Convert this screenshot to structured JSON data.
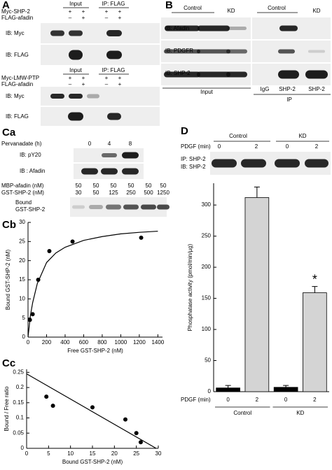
{
  "panels": {
    "A": {
      "label": "A",
      "top": {
        "groups": [
          "Input",
          "IP: FLAG"
        ],
        "rows": [
          {
            "name": "Myc-SHP-2",
            "marks": [
              "+",
              "+",
              "+",
              "+"
            ]
          },
          {
            "name": "FLAG-afadin",
            "marks": [
              "–",
              "+",
              "–",
              "+"
            ]
          }
        ],
        "blots": [
          "IB: Myc",
          "IB: FLAG"
        ]
      },
      "bottom": {
        "groups": [
          "Input",
          "IP: FLAG"
        ],
        "rows": [
          {
            "name": "Myc-LMW-PTP",
            "marks": [
              "+",
              "+",
              "+",
              "+"
            ]
          },
          {
            "name": "FLAG-afadin",
            "marks": [
              "–",
              "+",
              "–",
              "+"
            ]
          }
        ],
        "blots": [
          "IB: Myc",
          "IB: FLAG"
        ]
      }
    },
    "B": {
      "label": "B",
      "groups": [
        "Control",
        "KD",
        "Control",
        "KD"
      ],
      "blots": [
        "IB: Afadin",
        "IB: PDGFR",
        "IB: SHP-2"
      ],
      "lanes": [
        "IgG",
        "SHP-2",
        "SHP-2"
      ],
      "sections": [
        "Input",
        "IP"
      ]
    },
    "Ca": {
      "label": "Ca",
      "time_label": "Pervanadate (h)",
      "times": [
        "0",
        "4",
        "8"
      ],
      "blots": [
        "IB: pY20",
        "IB : Afadin"
      ],
      "rows": [
        {
          "name": "MBP-afadin (nM)",
          "values": [
            "50",
            "50",
            "50",
            "50",
            "50",
            "50"
          ]
        },
        {
          "name": "GST-SHP-2 (nM)",
          "values": [
            "30",
            "50",
            "125",
            "250",
            "500",
            "1250"
          ]
        }
      ],
      "bound_label": [
        "Bound",
        "GST-SHP-2"
      ]
    },
    "D": {
      "groups": [
        "Control",
        "KD"
      ],
      "pdgf_label": "PDGF (min)",
      "times": [
        "0",
        "2",
        "0",
        "2"
      ],
      "blot": [
        "IP: SHP-2",
        "IB: SHP-2"
      ]
    }
  },
  "chart_data": [
    {
      "type": "scatter",
      "label": "Cb",
      "xlabel": "Free GST-SHP-2 (nM)",
      "ylabel": "Bound GST-SHP-2 (nM)",
      "xlim": [
        0,
        1450
      ],
      "xticks": [
        0,
        200,
        400,
        600,
        800,
        1000,
        1200,
        1400
      ],
      "ylim": [
        0,
        30
      ],
      "yticks": [
        0,
        5,
        10,
        15,
        20,
        25,
        30
      ],
      "series": [
        {
          "style": "points",
          "color": "#000000",
          "x": [
            20,
            50,
            110,
            230,
            480,
            1220
          ],
          "values": [
            4.5,
            6,
            15,
            22.5,
            25,
            26
          ]
        },
        {
          "style": "line",
          "color": "#000000",
          "x": [
            0,
            25,
            50,
            100,
            200,
            300,
            400,
            600,
            800,
            1000,
            1200,
            1400
          ],
          "values": [
            0,
            5.5,
            9,
            14,
            19.5,
            22,
            23.5,
            25.3,
            26.3,
            27,
            27.4,
            27.7
          ]
        }
      ]
    },
    {
      "type": "scatter",
      "label": "Cc",
      "xlabel": "Bound GST-SHP-2 (nM)",
      "ylabel": "Bound / Free ratio",
      "xlim": [
        0,
        30
      ],
      "xticks": [
        0,
        5,
        10,
        15,
        20,
        25,
        30
      ],
      "ylim": [
        0,
        0.26
      ],
      "yticks": [
        0,
        0.05,
        0.1,
        0.15,
        0.2,
        0.25
      ],
      "series": [
        {
          "style": "points",
          "color": "#000000",
          "x": [
            4.5,
            6,
            15,
            22.5,
            25,
            26
          ],
          "values": [
            0.17,
            0.14,
            0.135,
            0.095,
            0.05,
            0.02
          ]
        },
        {
          "style": "line",
          "color": "#000000",
          "x": [
            0,
            29.5
          ],
          "values": [
            0.245,
            0
          ]
        }
      ]
    },
    {
      "type": "bar",
      "label": "D",
      "ylabel": "Phosphatase activity (pmol/min/µg)",
      "xlabel": "PDGF (min)",
      "categories": [
        "0",
        "2",
        "0",
        "2"
      ],
      "groups": [
        "Control",
        "KD"
      ],
      "values": [
        6,
        312,
        7,
        159
      ],
      "errors": [
        4,
        17,
        3,
        10
      ],
      "colors": [
        "#000000",
        "#d4d4d4",
        "#000000",
        "#d4d4d4"
      ],
      "ylim": [
        0,
        335
      ],
      "yticks": [
        0,
        50,
        100,
        150,
        200,
        250,
        300
      ],
      "annotation": "*"
    }
  ]
}
